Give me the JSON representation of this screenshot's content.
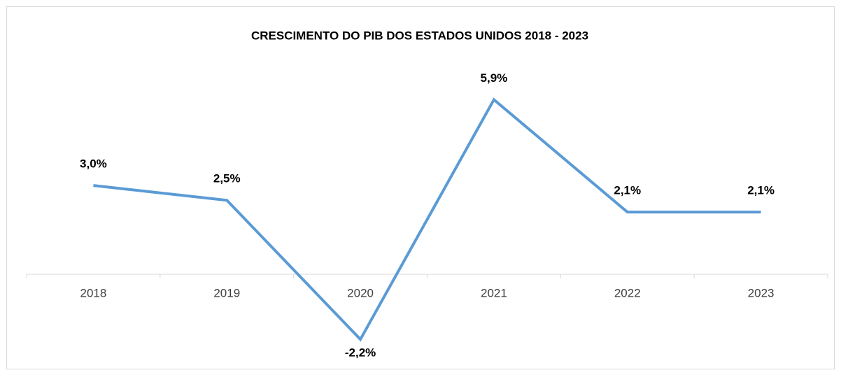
{
  "chart_data": {
    "type": "line",
    "title": "CRESCIMENTO DO PIB DOS ESTADOS UNIDOS 2018 - 2023",
    "categories": [
      "2018",
      "2019",
      "2020",
      "2021",
      "2022",
      "2023"
    ],
    "series": [
      {
        "name": "PIB",
        "color": "#5b9bd5",
        "values": [
          3.0,
          2.5,
          -2.2,
          5.9,
          2.1,
          2.1
        ],
        "value_labels": [
          "3,0%",
          "2,5%",
          "-2,2%",
          "5,9%",
          "2,1%",
          "2,1%"
        ]
      }
    ]
  }
}
